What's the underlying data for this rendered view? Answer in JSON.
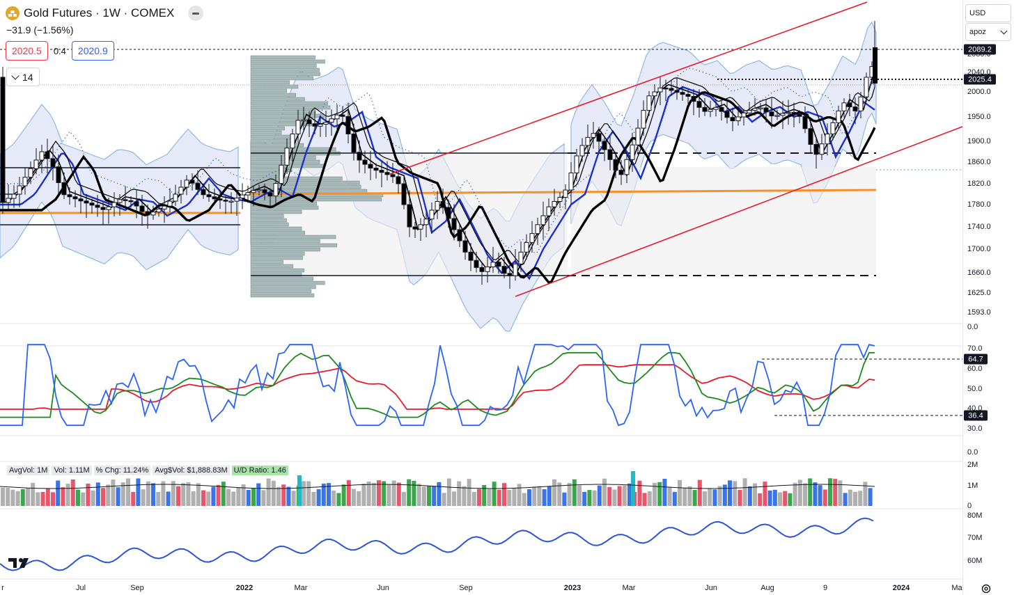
{
  "header": {
    "symbol_title": "Gold Futures · 1W · COMEX",
    "logo_icon": "gold-bars-icon",
    "hide_icon": "minus-icon",
    "change": "−31.9 (−1.56%)",
    "sell_price": "2020.5",
    "spread": "0.4",
    "buy_price": "2020.9",
    "indicators_count": "14"
  },
  "right_controls": {
    "currency": "USD",
    "scale_mode": "apoz"
  },
  "price_axis": {
    "labels": [
      "2080.0",
      "2040.0",
      "2000.0",
      "1950.0",
      "1900.0",
      "1860.0",
      "1820.0",
      "1780.0",
      "1740.0",
      "1700.0",
      "1660.0",
      "1625.0",
      "1593.0",
      "0.0"
    ],
    "tags": [
      "2089.2",
      "2025.4"
    ]
  },
  "rsi_axis": {
    "labels": [
      "70.0",
      "60.0",
      "50.0",
      "40.0",
      "30.0",
      "0.0"
    ],
    "tags": [
      "64.7",
      "36.4"
    ]
  },
  "volume_axis": {
    "labels": [
      "2M",
      "1M",
      "0"
    ]
  },
  "vol_legend": {
    "avg_vol": "AvgVol: 1M",
    "vol": "Vol: 1.11M",
    "pct_chg": "% Chg: 11.24%",
    "avg_dollar_vol": "Avg$Vol: $1,888.83M",
    "ud_ratio": "U/D Ratio: 1.46"
  },
  "oi_axis": {
    "labels": [
      "80M",
      "70M",
      "60M"
    ]
  },
  "time_axis": {
    "labels": [
      "r",
      "Jul",
      "Sep",
      "2022",
      "Mar",
      "Jun",
      "Sep",
      "2023",
      "Mar",
      "Jun",
      "Aug",
      "9",
      "2024",
      "Ma"
    ]
  },
  "colors": {
    "up": "#ffffff",
    "down": "#000000",
    "channel": "#e8192c",
    "band_fill": "#dfe3f5",
    "band_line": "#8fb8e8",
    "ma_blue": "#1a2fd1",
    "ma_black": "#000000",
    "orange": "#f5902a",
    "rsi": "#2962ff",
    "rsi_fast": "#1a8a1a",
    "rsi_slow": "#e8192c",
    "vol_up": "#3aa84a",
    "vol_down": "#e8566c",
    "vol_neutral": "#b0b0b0",
    "vol_blue": "#3a74e8",
    "vol_cyan": "#22b8c8"
  },
  "icons": {
    "tv_logo": "tradingview-logo-icon",
    "settings": "gear-icon"
  }
}
